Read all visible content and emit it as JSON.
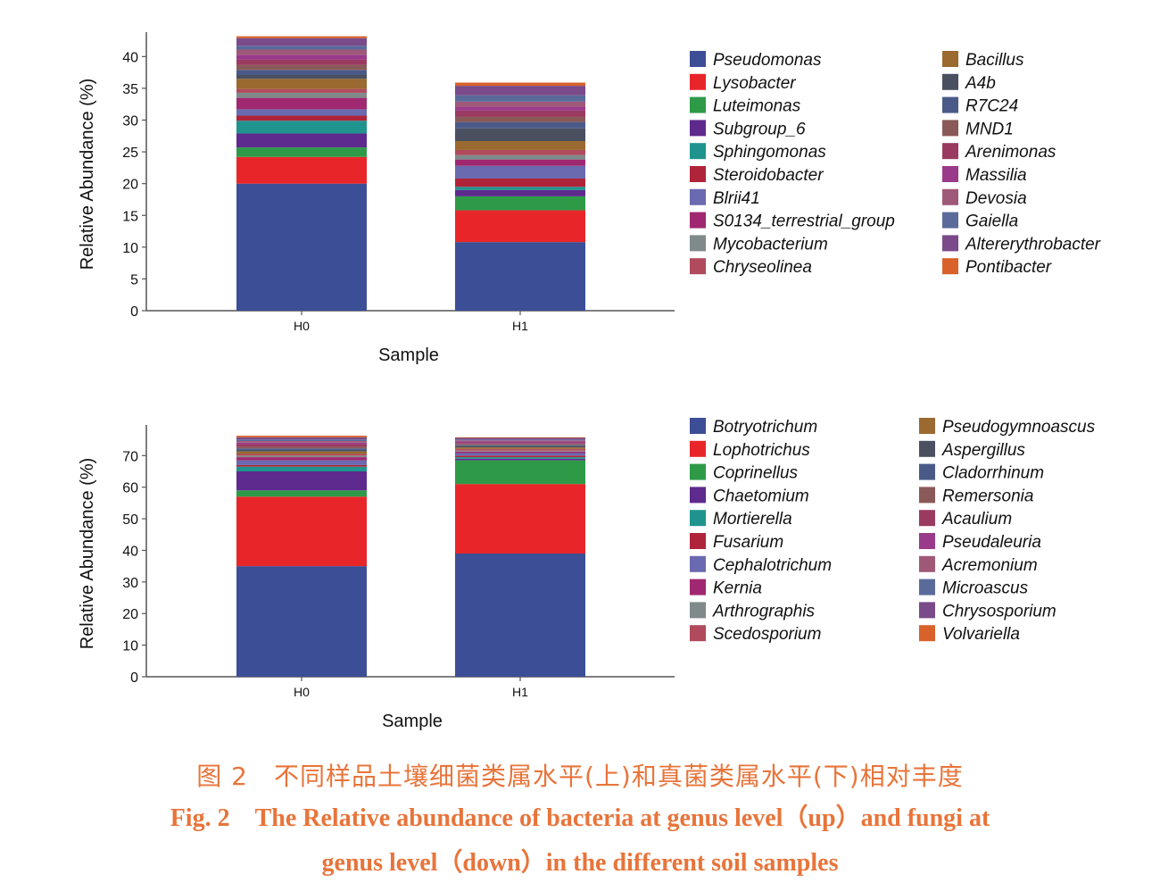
{
  "caption": {
    "zh": "图 2　不同样品土壤细菌类属水平(上)和真菌类属水平(下)相对丰度",
    "en_line1": "Fig. 2　The Relative abundance of bacteria at genus level（up）and fungi at",
    "en_line2": "genus level（down）in the different soil samples"
  },
  "chart_data": [
    {
      "type": "bar",
      "stacked": true,
      "xlabel": "Sample",
      "ylabel": "Relative Abundance (%)",
      "ylim": [
        0,
        43
      ],
      "yticks": [
        0,
        5,
        10,
        15,
        20,
        25,
        30,
        35,
        40
      ],
      "categories": [
        "H0",
        "H1"
      ],
      "grid": false,
      "legend_position": "right",
      "series": [
        {
          "name": "Pseudomonas",
          "color": "#3c4e96",
          "values": [
            20.0,
            10.8
          ]
        },
        {
          "name": "Lysobacter",
          "color": "#e8262a",
          "values": [
            4.2,
            5.0
          ]
        },
        {
          "name": "Luteimonas",
          "color": "#2e9a48",
          "values": [
            1.5,
            2.2
          ]
        },
        {
          "name": "Subgroup_6",
          "color": "#5e2a8e",
          "values": [
            2.2,
            1.0
          ]
        },
        {
          "name": "Sphingomonas",
          "color": "#1f948e",
          "values": [
            2.0,
            0.5
          ]
        },
        {
          "name": "Steroidobacter",
          "color": "#b0243a",
          "values": [
            0.8,
            1.3
          ]
        },
        {
          "name": "Blrii41",
          "color": "#6a6ab0",
          "values": [
            1.0,
            2.0
          ]
        },
        {
          "name": "S0134_terrestrial_group",
          "color": "#a02870",
          "values": [
            1.8,
            1.0
          ]
        },
        {
          "name": "Mycobacterium",
          "color": "#7f8a8a",
          "values": [
            0.8,
            0.7
          ]
        },
        {
          "name": "Chryseolinea",
          "color": "#b04a5c",
          "values": [
            0.6,
            0.8
          ]
        },
        {
          "name": "Bacillus",
          "color": "#9a6a30",
          "values": [
            1.6,
            1.4
          ]
        },
        {
          "name": "A4b",
          "color": "#4a5060",
          "values": [
            0.6,
            2.0
          ]
        },
        {
          "name": "R7C24",
          "color": "#4a5a88",
          "values": [
            0.8,
            1.0
          ]
        },
        {
          "name": "MND1",
          "color": "#8a5a58",
          "values": [
            0.8,
            0.8
          ]
        },
        {
          "name": "Arenimonas",
          "color": "#9a3a60",
          "values": [
            0.8,
            1.0
          ]
        },
        {
          "name": "Massilia",
          "color": "#9a3a8a",
          "values": [
            0.8,
            0.6
          ]
        },
        {
          "name": "Devosia",
          "color": "#a05878",
          "values": [
            0.8,
            0.8
          ]
        },
        {
          "name": "Gaiella",
          "color": "#5a6a9a",
          "values": [
            0.6,
            1.0
          ]
        },
        {
          "name": "Altererythrobacter",
          "color": "#7a4a8a",
          "values": [
            1.2,
            1.5
          ]
        },
        {
          "name": "Pontibacter",
          "color": "#d8622a",
          "values": [
            0.3,
            0.5
          ]
        }
      ]
    },
    {
      "type": "bar",
      "stacked": true,
      "xlabel": "Sample",
      "ylabel": "Relative Abundance (%)",
      "ylim": [
        0,
        78
      ],
      "yticks": [
        0,
        10,
        20,
        30,
        40,
        50,
        60,
        70
      ],
      "categories": [
        "H0",
        "H1"
      ],
      "grid": false,
      "legend_position": "right",
      "series": [
        {
          "name": "Botryotrichum",
          "color": "#3c4e96",
          "values": [
            35.0,
            39.0
          ]
        },
        {
          "name": "Lophotrichus",
          "color": "#e8262a",
          "values": [
            22.0,
            22.0
          ]
        },
        {
          "name": "Coprinellus",
          "color": "#2e9a48",
          "values": [
            2.0,
            7.5
          ]
        },
        {
          "name": "Chaetomium",
          "color": "#5e2a8e",
          "values": [
            6.0,
            0.5
          ]
        },
        {
          "name": "Mortierella",
          "color": "#1f948e",
          "values": [
            1.5,
            0.5
          ]
        },
        {
          "name": "Fusarium",
          "color": "#b0243a",
          "values": [
            0.5,
            0.5
          ]
        },
        {
          "name": "Cephalotrichum",
          "color": "#6a6ab0",
          "values": [
            1.5,
            0.8
          ]
        },
        {
          "name": "Kernia",
          "color": "#a02870",
          "values": [
            1.0,
            0.5
          ]
        },
        {
          "name": "Arthrographis",
          "color": "#7f8a8a",
          "values": [
            0.5,
            0.3
          ]
        },
        {
          "name": "Scedosporium",
          "color": "#b04a5c",
          "values": [
            0.5,
            0.5
          ]
        },
        {
          "name": "Pseudogymnoascus",
          "color": "#9a6a30",
          "values": [
            0.8,
            0.5
          ]
        },
        {
          "name": "Aspergillus",
          "color": "#4a5060",
          "values": [
            0.5,
            0.5
          ]
        },
        {
          "name": "Cladorrhinum",
          "color": "#4a5a88",
          "values": [
            0.5,
            0.3
          ]
        },
        {
          "name": "Remersonia",
          "color": "#8a5a58",
          "values": [
            0.5,
            0.3
          ]
        },
        {
          "name": "Acaulium",
          "color": "#9a3a60",
          "values": [
            0.8,
            0.3
          ]
        },
        {
          "name": "Pseudaleuria",
          "color": "#9a3a8a",
          "values": [
            0.5,
            0.5
          ]
        },
        {
          "name": "Acremonium",
          "color": "#a05878",
          "values": [
            0.5,
            0.3
          ]
        },
        {
          "name": "Microascus",
          "color": "#5a6a9a",
          "values": [
            0.5,
            0.3
          ]
        },
        {
          "name": "Chrysosporium",
          "color": "#7a4a8a",
          "values": [
            0.7,
            0.5
          ]
        },
        {
          "name": "Volvariella",
          "color": "#d8622a",
          "values": [
            0.5,
            0.2
          ]
        }
      ]
    }
  ]
}
